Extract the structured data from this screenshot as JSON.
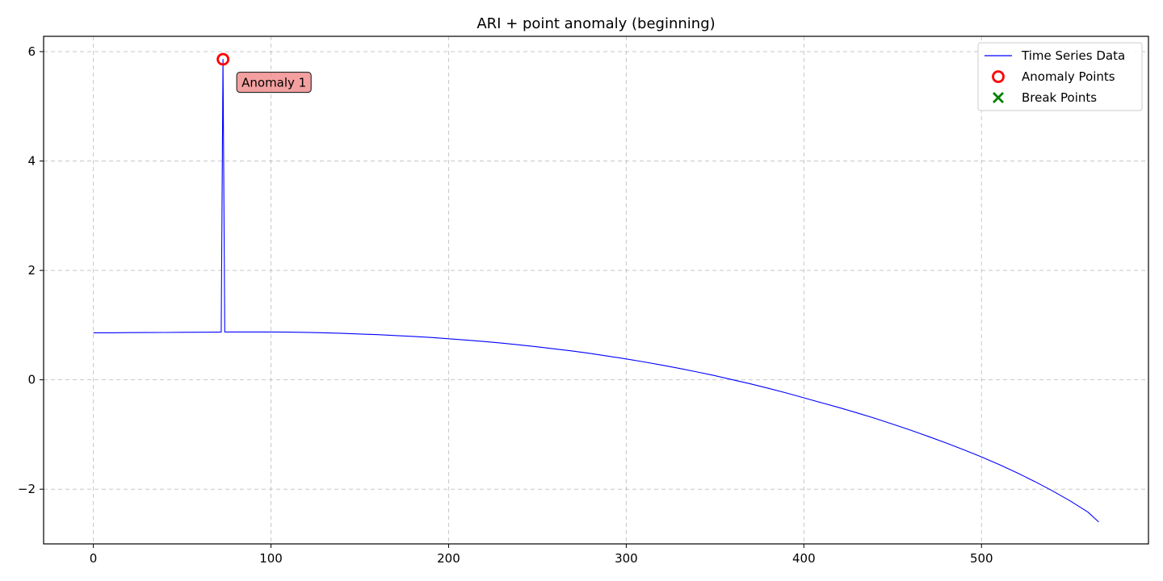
{
  "chart_data": {
    "type": "line",
    "title": "ARI + point anomaly (beginning)",
    "xlabel": "",
    "ylabel": "",
    "xlim": [
      -28,
      594
    ],
    "ylim": [
      -3.0,
      6.28
    ],
    "xticks": [
      0,
      100,
      200,
      300,
      400,
      500
    ],
    "yticks": [
      -2,
      0,
      2,
      4,
      6
    ],
    "grid": true,
    "legend_position": "top-right",
    "series": [
      {
        "name": "Time Series Data",
        "color": "#0000ff",
        "x": [
          0,
          10,
          20,
          30,
          40,
          50,
          60,
          70,
          72,
          73,
          74,
          80,
          90,
          100,
          110,
          120,
          130,
          140,
          150,
          160,
          170,
          180,
          190,
          200,
          210,
          220,
          230,
          240,
          250,
          260,
          270,
          280,
          290,
          300,
          310,
          320,
          330,
          340,
          350,
          360,
          370,
          380,
          390,
          400,
          410,
          420,
          430,
          440,
          450,
          460,
          470,
          480,
          490,
          500,
          510,
          520,
          530,
          540,
          550,
          560,
          566
        ],
        "y": [
          0.86,
          0.86,
          0.862,
          0.864,
          0.866,
          0.868,
          0.87,
          0.872,
          0.873,
          5.86,
          0.874,
          0.874,
          0.875,
          0.875,
          0.872,
          0.867,
          0.859,
          0.849,
          0.838,
          0.825,
          0.81,
          0.793,
          0.774,
          0.751,
          0.727,
          0.7,
          0.67,
          0.638,
          0.603,
          0.565,
          0.524,
          0.48,
          0.432,
          0.381,
          0.327,
          0.269,
          0.208,
          0.143,
          0.075,
          0.0,
          -0.075,
          -0.155,
          -0.24,
          -0.33,
          -0.42,
          -0.51,
          -0.605,
          -0.705,
          -0.81,
          -0.92,
          -1.035,
          -1.155,
          -1.28,
          -1.41,
          -1.55,
          -1.7,
          -1.86,
          -2.03,
          -2.215,
          -2.42,
          -2.6
        ]
      }
    ],
    "anomaly_points": {
      "name": "Anomaly Points",
      "color": "#ff0000",
      "points": [
        {
          "x": 73,
          "y": 5.86
        }
      ]
    },
    "break_points": {
      "name": "Break Points",
      "color": "#008000",
      "points": []
    },
    "annotations": [
      {
        "text": "Anomaly 1",
        "x": 73,
        "y": 5.86
      }
    ]
  }
}
